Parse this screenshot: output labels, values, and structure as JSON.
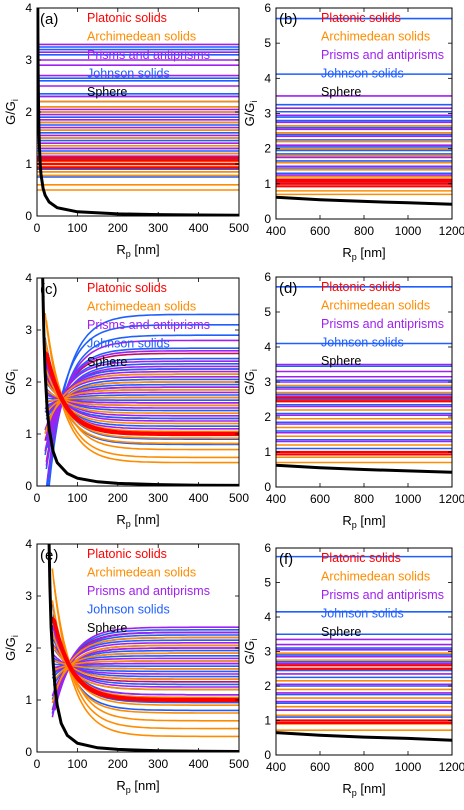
{
  "colors": {
    "platonic": "#ff0000",
    "archimedean": "#ff8c00",
    "prisms": "#a020f0",
    "johnson": "#1f5fff",
    "sphere": "#000000",
    "mixed": "#c01060"
  },
  "chart_data": [
    {
      "panel": "(a)",
      "type": "line",
      "xlabel": "R_p [nm]",
      "ylabel": "G/G_i",
      "xlim": [
        0,
        500
      ],
      "ylim": [
        0,
        4
      ],
      "xticks": [
        0,
        100,
        200,
        300,
        400,
        500
      ],
      "yticks": [
        0,
        1,
        2,
        3,
        4
      ],
      "legend": [
        "Platonic solids",
        "Archimedean solids",
        "Prisms and antiprisms",
        "Johnson solids",
        "Sphere"
      ],
      "mode": "flat",
      "sphere": {
        "name": "Sphere",
        "x": [
          2.0,
          2.5,
          3,
          4,
          5,
          6,
          8,
          10,
          15,
          20,
          30,
          50,
          100,
          200,
          300,
          400,
          500
        ],
        "y": [
          4.0,
          3.2,
          2.67,
          2.0,
          1.6,
          1.33,
          1.0,
          0.8,
          0.53,
          0.4,
          0.27,
          0.16,
          0.08,
          0.04,
          0.027,
          0.02,
          0.016
        ]
      },
      "families": {
        "platonic": [
          0.93,
          1.0,
          1.07,
          1.12
        ],
        "archimedean": [
          0.5,
          0.6,
          0.78,
          0.85,
          0.95,
          1.05,
          1.2,
          1.35,
          1.5,
          1.65,
          1.8,
          2.0,
          2.1,
          2.2
        ],
        "prisms": [
          1.15,
          1.3,
          1.4,
          1.55,
          1.7,
          1.85,
          1.95,
          2.05,
          2.3,
          2.5,
          2.7,
          2.9,
          3.0,
          3.15,
          3.3
        ],
        "johnson": [
          0.75,
          0.85,
          0.9,
          1.1,
          1.2,
          1.25,
          1.3,
          1.45,
          1.5,
          1.6,
          1.65,
          1.75,
          1.8,
          1.9,
          2.0,
          2.1,
          2.2,
          2.3,
          2.35,
          2.6,
          2.65,
          3.1,
          3.2,
          3.25
        ]
      }
    },
    {
      "panel": "(b)",
      "type": "line",
      "xlabel": "R_p [nm]",
      "ylabel": "G/G_i",
      "xlim": [
        400,
        1200
      ],
      "ylim": [
        0,
        6
      ],
      "xticks": [
        400,
        600,
        800,
        1000,
        1200
      ],
      "yticks": [
        0,
        1,
        2,
        3,
        4,
        5,
        6
      ],
      "legend": [
        "Platonic solids",
        "Archimedean solids",
        "Prisms and antiprisms",
        "Johnson solids",
        "Sphere"
      ],
      "mode": "flat",
      "sphere": {
        "name": "Sphere",
        "x": [
          400,
          600,
          800,
          1000,
          1200
        ],
        "y": [
          0.62,
          0.55,
          0.5,
          0.46,
          0.42
        ]
      },
      "families": {
        "platonic": [
          0.93,
          1.0,
          1.07,
          1.12
        ],
        "archimedean": [
          0.7,
          0.8,
          1.2,
          1.4,
          1.6,
          1.8,
          2.0,
          2.2,
          2.45,
          2.65
        ],
        "prisms": [
          1.25,
          1.5,
          1.75,
          2.1,
          2.35,
          2.55,
          2.75,
          2.95,
          3.15,
          3.5
        ],
        "johnson": [
          1.05,
          1.3,
          1.45,
          1.65,
          1.85,
          1.95,
          2.05,
          2.25,
          2.4,
          2.6,
          2.8,
          2.9,
          3.05,
          3.25,
          4.12,
          5.7
        ]
      }
    },
    {
      "panel": "(c)",
      "type": "line",
      "xlabel": "R_p [nm]",
      "ylabel": "G/G_i",
      "xlim": [
        0,
        500
      ],
      "ylim": [
        0,
        4
      ],
      "xticks": [
        0,
        100,
        200,
        300,
        400,
        500
      ],
      "yticks": [
        0,
        1,
        2,
        3,
        4
      ],
      "legend": [
        "Platonic solids",
        "Archimedean solids",
        "Prisms and antiprisms",
        "Johnson solids",
        "Sphere"
      ],
      "mode": "converge",
      "x0": 20,
      "sphere": {
        "name": "Sphere",
        "x": [
          14,
          15,
          17,
          20,
          25,
          30,
          40,
          50,
          75,
          100,
          150,
          200,
          300,
          400,
          500
        ],
        "y": [
          4.0,
          3.6,
          2.9,
          2.2,
          1.5,
          1.1,
          0.66,
          0.45,
          0.24,
          0.15,
          0.08,
          0.05,
          0.026,
          0.016,
          0.011
        ]
      },
      "families": {
        "platonic": [
          0.98,
          1.0,
          1.02
        ],
        "archimedean": [
          0.45,
          0.55,
          0.7,
          0.82,
          0.92,
          1.05,
          1.2,
          1.4,
          1.55,
          1.7,
          1.85,
          2.0,
          2.15
        ],
        "prisms": [
          1.1,
          1.25,
          1.35,
          1.5,
          1.6,
          1.7,
          1.8,
          1.9,
          2.0,
          2.1,
          2.2,
          2.3,
          2.4,
          2.6,
          2.8
        ],
        "johnson": [
          0.8,
          0.9,
          1.0,
          1.15,
          1.3,
          1.45,
          1.55,
          1.65,
          1.75,
          1.85,
          1.95,
          2.05,
          2.15,
          2.25,
          2.35,
          2.45,
          2.65,
          2.9,
          3.1,
          3.3
        ],
        "mixed": [
          1.3,
          1.6,
          1.9,
          2.25,
          2.55
        ]
      }
    },
    {
      "panel": "(d)",
      "type": "line",
      "xlabel": "R_p [nm]",
      "ylabel": "G/G_i",
      "xlim": [
        400,
        1200
      ],
      "ylim": [
        0,
        6
      ],
      "xticks": [
        400,
        600,
        800,
        1000,
        1200
      ],
      "yticks": [
        0,
        1,
        2,
        3,
        4,
        5,
        6
      ],
      "legend": [
        "Platonic solids",
        "Archimedean solids",
        "Prisms and antiprisms",
        "Johnson solids",
        "Sphere"
      ],
      "mode": "flat",
      "sphere": {
        "name": "Sphere",
        "x": [
          400,
          600,
          800,
          1000,
          1200
        ],
        "y": [
          0.62,
          0.55,
          0.5,
          0.46,
          0.42
        ]
      },
      "families": {
        "platonic": [
          0.93,
          1.0,
          2.45,
          2.55
        ],
        "archimedean": [
          0.7,
          0.85,
          1.2,
          1.45,
          1.7,
          1.95,
          2.2,
          2.7,
          2.9
        ],
        "prisms": [
          1.3,
          1.55,
          1.8,
          2.05,
          2.3,
          2.6,
          2.8,
          3.0,
          3.15,
          3.3,
          3.5
        ],
        "johnson": [
          1.1,
          1.35,
          1.6,
          1.85,
          2.1,
          2.35,
          2.5,
          2.65,
          2.85,
          3.05,
          3.45,
          4.1,
          5.72
        ]
      }
    },
    {
      "panel": "(e)",
      "type": "line",
      "xlabel": "R_p [nm]",
      "ylabel": "G/G_i",
      "xlim": [
        0,
        500
      ],
      "ylim": [
        0,
        4
      ],
      "xticks": [
        0,
        100,
        200,
        300,
        400,
        500
      ],
      "yticks": [
        0,
        1,
        2,
        3,
        4
      ],
      "legend": [
        "Platonic solids",
        "Archimedean solids",
        "Prisms and antiprisms",
        "Johnson solids",
        "Sphere"
      ],
      "mode": "converge",
      "x0": 38,
      "sphere": {
        "name": "Sphere",
        "x": [
          30,
          32,
          35,
          40,
          45,
          50,
          60,
          75,
          100,
          150,
          200,
          300,
          400,
          500
        ],
        "y": [
          4.0,
          3.2,
          2.4,
          1.7,
          1.2,
          0.9,
          0.55,
          0.32,
          0.17,
          0.08,
          0.05,
          0.025,
          0.015,
          0.01
        ]
      },
      "families": {
        "platonic": [
          0.98,
          1.0,
          1.02
        ],
        "archimedean": [
          0.3,
          0.45,
          0.6,
          0.75,
          0.9,
          1.05,
          1.2,
          1.4,
          1.6,
          1.75,
          1.9,
          2.05,
          2.2
        ],
        "prisms": [
          1.1,
          1.25,
          1.4,
          1.5,
          1.6,
          1.7,
          1.8,
          1.9,
          2.0,
          2.1,
          2.2,
          2.3,
          2.4
        ],
        "johnson": [
          0.8,
          0.95,
          1.1,
          1.2,
          1.3,
          1.45,
          1.55,
          1.65,
          1.75,
          1.85,
          1.95,
          2.05,
          2.15,
          2.25,
          2.3,
          2.35
        ],
        "mixed": [
          1.35,
          1.7,
          2.0,
          2.3
        ]
      }
    },
    {
      "panel": "(f)",
      "type": "line",
      "xlabel": "R_p [nm]",
      "ylabel": "G/G_i",
      "xlim": [
        400,
        1200
      ],
      "ylim": [
        0,
        6
      ],
      "xticks": [
        400,
        600,
        800,
        1000,
        1200
      ],
      "yticks": [
        0,
        1,
        2,
        3,
        4,
        5,
        6
      ],
      "legend": [
        "Platonic solids",
        "Archimedean solids",
        "Prisms and antiprisms",
        "Johnson solids",
        "Sphere"
      ],
      "mode": "flat",
      "sphere": {
        "name": "Sphere",
        "x": [
          400,
          600,
          800,
          1000,
          1200
        ],
        "y": [
          0.65,
          0.57,
          0.52,
          0.48,
          0.43
        ]
      },
      "families": {
        "platonic": [
          0.93,
          1.0,
          2.5,
          2.6
        ],
        "archimedean": [
          0.72,
          0.9,
          1.15,
          1.4,
          1.65,
          1.9,
          2.15,
          2.75,
          2.95
        ],
        "prisms": [
          1.3,
          1.55,
          1.8,
          2.05,
          2.35,
          2.65,
          2.85,
          3.05,
          3.2,
          3.35
        ],
        "johnson": [
          1.1,
          1.3,
          1.5,
          1.75,
          2.0,
          2.25,
          2.45,
          2.7,
          2.9,
          3.1,
          3.5,
          4.15,
          5.75
        ]
      }
    }
  ]
}
